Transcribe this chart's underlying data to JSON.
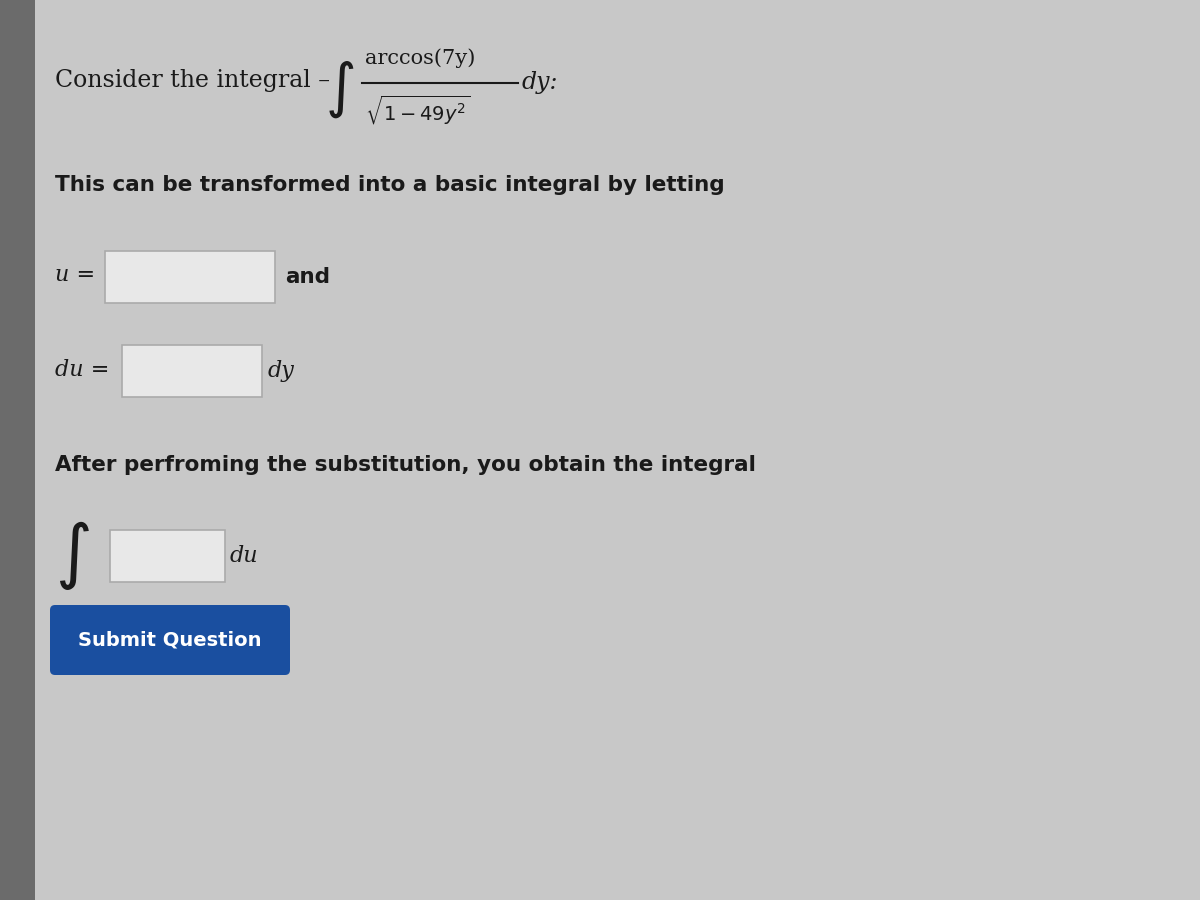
{
  "background_color": "#c8c8c8",
  "left_bar_color": "#6b6b6b",
  "text_color": "#1a1a1a",
  "title_line1": "Consider the integral –",
  "formula_numerator": "arccos(7y)",
  "formula_denominator": "√1 – 49y²",
  "formula_dy": "dy:",
  "line2": "This can be transformed into a basic integral by letting",
  "u_label": "u =",
  "and_text": "and",
  "du_label": "du =",
  "dy_text": "dy",
  "after_text": "After perfroming the substitution, you obtain the integral",
  "du_suffix": "du",
  "button_text": "Submit Question",
  "button_bg": "#1a4fa0",
  "button_text_color": "#ffffff",
  "input_box_color": "#e8e8e8",
  "input_box_border": "#aaaaaa",
  "figsize": [
    12,
    9
  ],
  "dpi": 100
}
